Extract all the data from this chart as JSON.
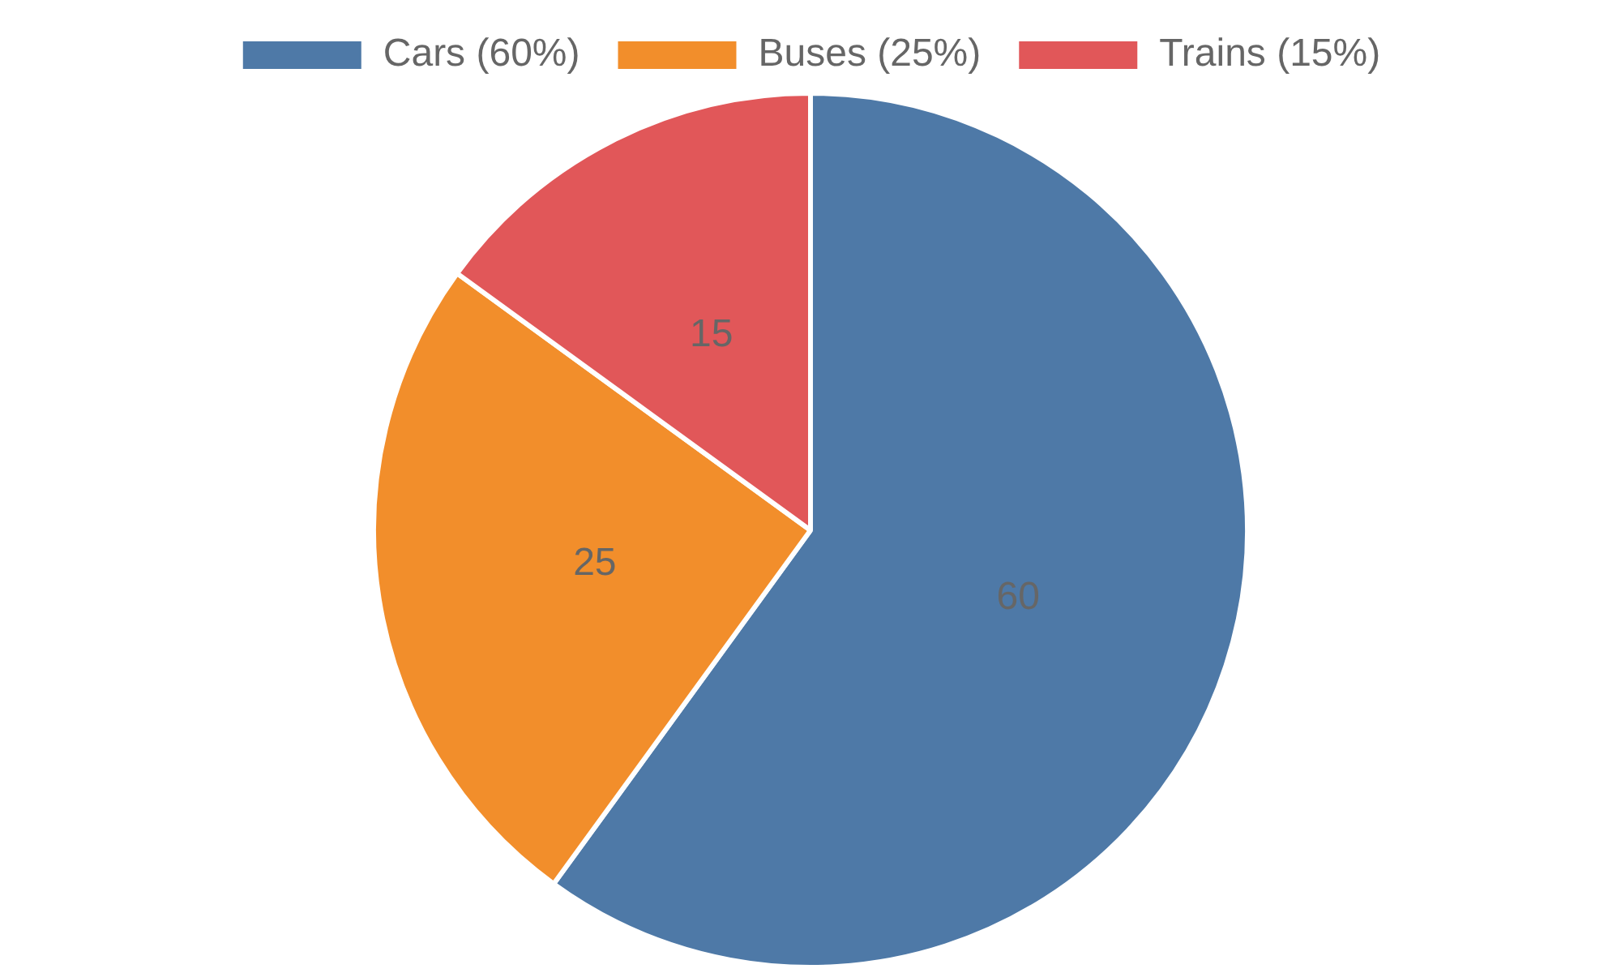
{
  "chart_data": {
    "type": "pie",
    "categories": [
      "Cars (60%)",
      "Buses (25%)",
      "Trains (15%)"
    ],
    "values": [
      60,
      25,
      15
    ],
    "colors": [
      "#4e79a7",
      "#f28e2b",
      "#e15759"
    ],
    "data_labels": true,
    "legend": "top"
  }
}
